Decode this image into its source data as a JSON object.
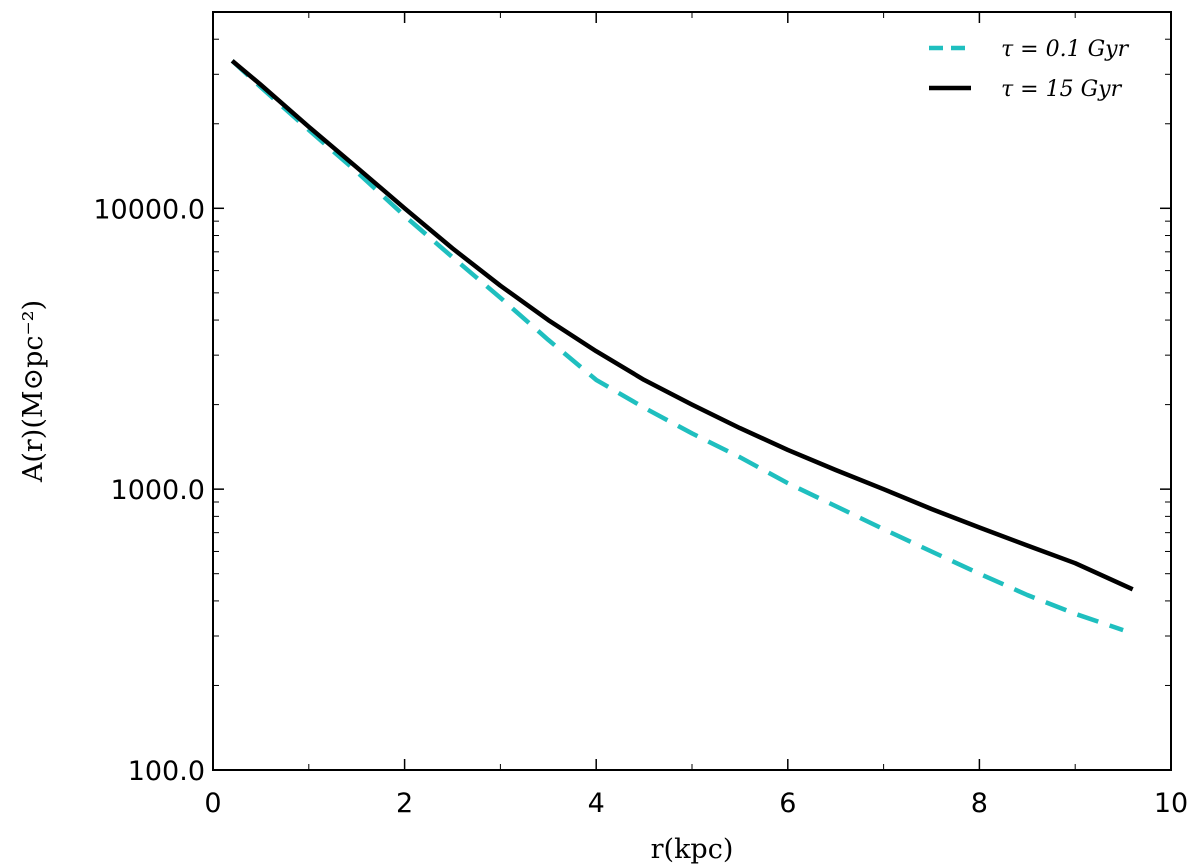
{
  "chart_data": {
    "type": "line",
    "xlabel": "r(kpc)",
    "ylabel": "A(r)(M⊙pc⁻²)",
    "xlim": [
      0,
      10
    ],
    "ylim": [
      100,
      50000
    ],
    "yscale": "log",
    "xticks": [
      0,
      2,
      4,
      6,
      8,
      10
    ],
    "xtick_labels": [
      "0",
      "2",
      "4",
      "6",
      "8",
      "10"
    ],
    "yticks": [
      100,
      1000,
      10000
    ],
    "ytick_labels": [
      "100.0",
      "1000.0",
      "10000.0"
    ],
    "grid": false,
    "legend_position": "top-right",
    "series": [
      {
        "name": "τ = 0.1 Gyr",
        "color": "#1fbfbf",
        "style": "dashed",
        "x": [
          0.2,
          0.5,
          1.0,
          1.5,
          2.0,
          2.5,
          3.0,
          3.5,
          4.0,
          4.5,
          5.0,
          5.5,
          6.0,
          6.5,
          7.0,
          7.5,
          8.0,
          8.5,
          9.0,
          9.5
        ],
        "y": [
          33500,
          27000,
          19000,
          13500,
          9400,
          6700,
          4800,
          3400,
          2450,
          1950,
          1580,
          1300,
          1050,
          870,
          720,
          600,
          500,
          420,
          360,
          315
        ]
      },
      {
        "name": "τ = 15 Gyr",
        "color": "#000000",
        "style": "solid",
        "x": [
          0.2,
          0.5,
          1.0,
          1.5,
          2.0,
          2.5,
          3.0,
          3.5,
          4.0,
          4.5,
          5.0,
          5.5,
          6.0,
          6.5,
          7.0,
          7.5,
          8.0,
          8.5,
          9.0,
          9.6
        ],
        "y": [
          33500,
          27500,
          19500,
          14000,
          10000,
          7200,
          5300,
          4000,
          3100,
          2450,
          2000,
          1650,
          1380,
          1170,
          1000,
          850,
          730,
          630,
          545,
          440
        ]
      }
    ]
  }
}
